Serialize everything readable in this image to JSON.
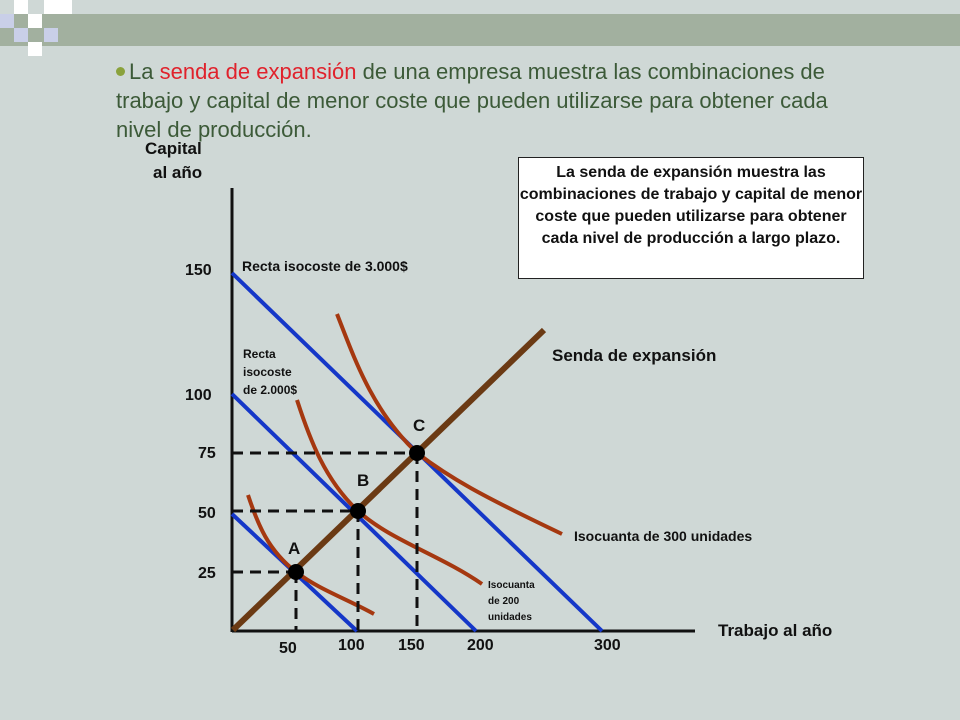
{
  "intro": {
    "before": "La ",
    "highlight": "senda de expansión",
    "after": " de una empresa muestra las combinaciones de trabajo y capital de menor coste que pueden utilizarse para obtener cada nivel de producción."
  },
  "axes": {
    "y_label_line1": "Capital",
    "y_label_line2": "al año",
    "x_label": "Trabajo al año",
    "y_ticks": [
      "150",
      "100",
      "75",
      "50",
      "25"
    ],
    "x_ticks": [
      "50",
      "100",
      "150",
      "200",
      "300"
    ]
  },
  "note_box": "La senda de expansión muestra las combinaciones de trabajo y capital de menor coste que pueden utilizarse para obtener cada nivel de producción a largo plazo.",
  "labels": {
    "isocost_3000": "Recta isocoste de 3.000$",
    "isocost_2000_l1": "Recta",
    "isocost_2000_l2": "isocoste",
    "isocost_2000_l3": "de 2.000$",
    "expansion_path": "Senda de expansión",
    "isoquant_300": "Isocuanta de 300 unidades",
    "isoquant_200_l1": "Isocuanta",
    "isoquant_200_l2": "de 200",
    "isoquant_200_l3": "unidades",
    "point_a": "A",
    "point_b": "B",
    "point_c": "C"
  },
  "points": [
    {
      "name": "A",
      "labor": 50,
      "capital": 25
    },
    {
      "name": "B",
      "labor": 100,
      "capital": 50
    },
    {
      "name": "C",
      "labor": 150,
      "capital": 75
    }
  ],
  "colors": {
    "isocost": "#1537c8",
    "isoquant": "#a53810",
    "expansion": "#6b3a14",
    "highlight": "#e0222c",
    "text_green": "#3c5a38",
    "background": "#cfd8d6"
  }
}
